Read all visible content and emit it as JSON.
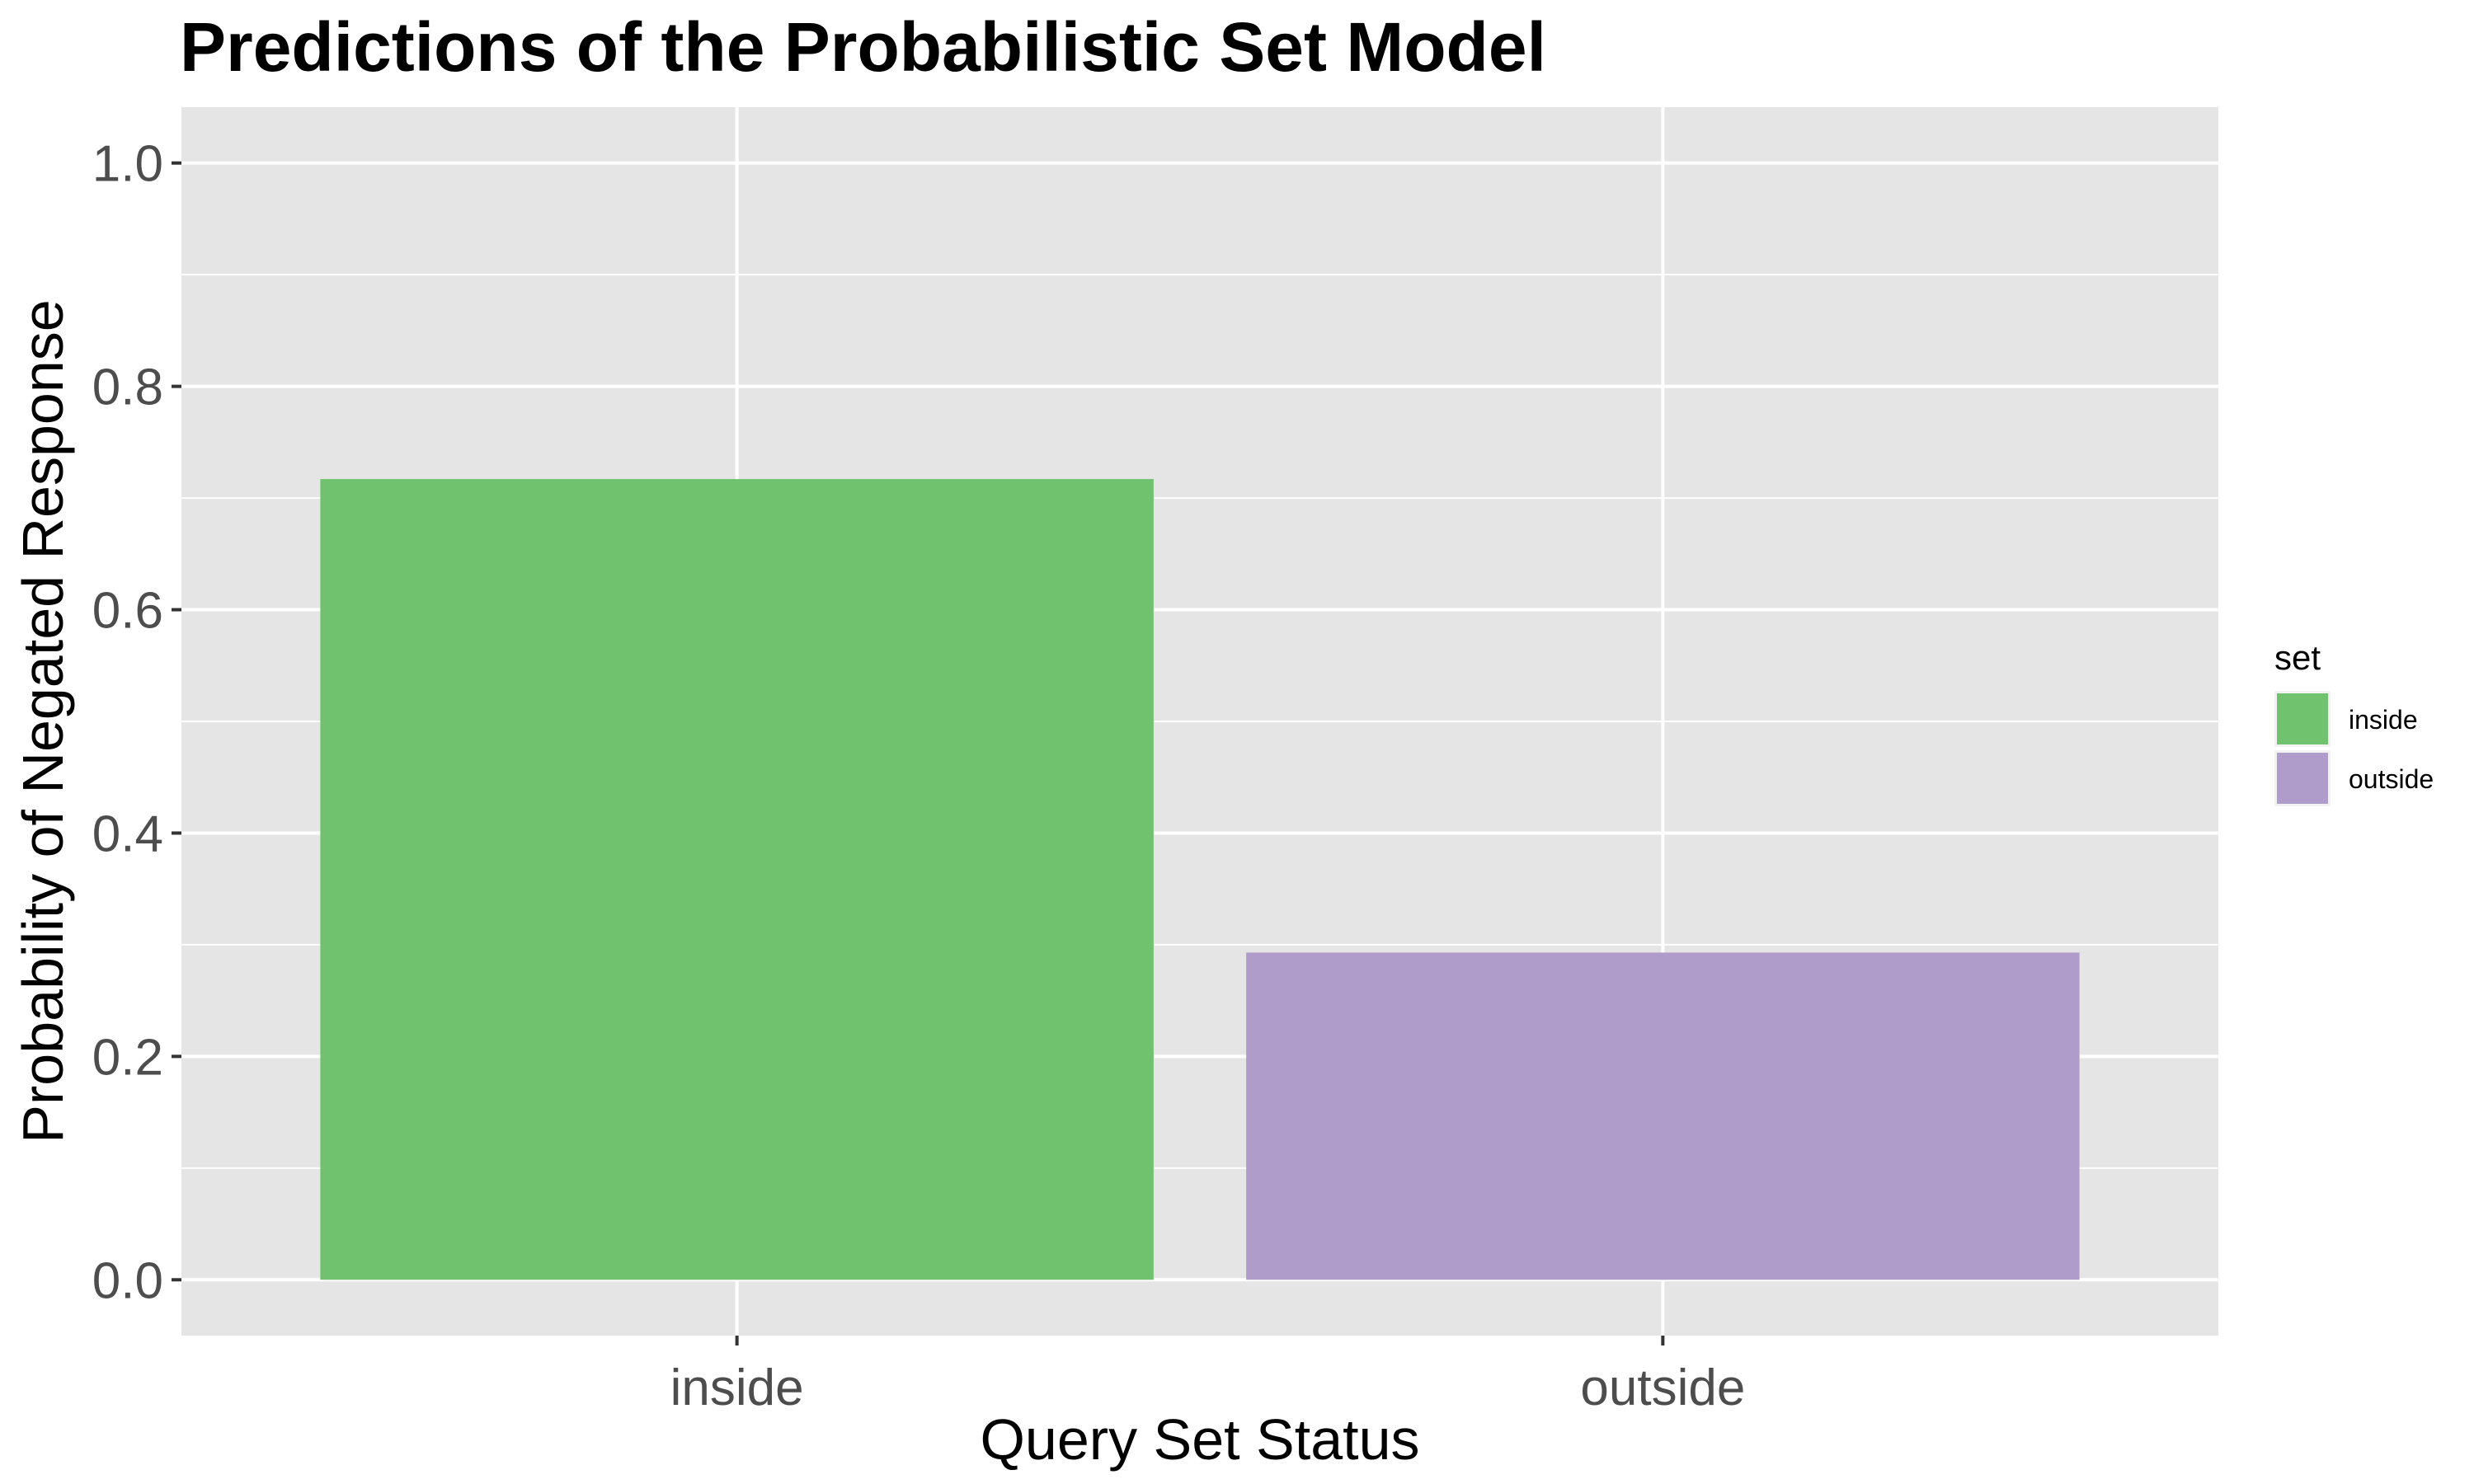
{
  "chart_data": {
    "type": "bar",
    "title": "Predictions of the Probabilistic Set Model",
    "xlabel": "Query Set Status",
    "ylabel": "Probability of Negated Response",
    "categories": [
      "inside",
      "outside"
    ],
    "values": [
      0.717,
      0.293
    ],
    "colors": [
      "#70c26e",
      "#b09ccb"
    ],
    "ylim": [
      -0.05,
      1.05
    ],
    "yticks": [
      "0.0",
      "0.2",
      "0.4",
      "0.6",
      "0.8",
      "1.0"
    ],
    "grid": true,
    "panel_background": "#e5e5e5",
    "legend": {
      "title": "set",
      "position": "right",
      "entries": [
        "inside",
        "outside"
      ]
    }
  }
}
